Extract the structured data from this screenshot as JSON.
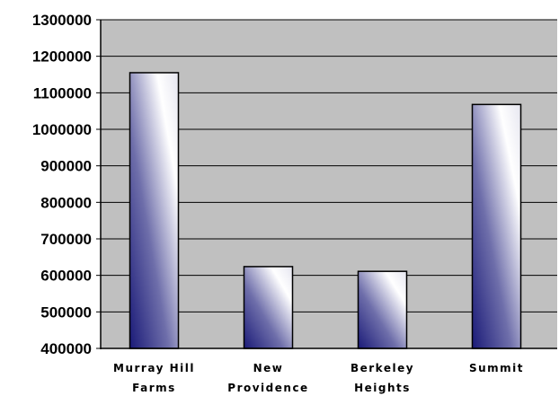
{
  "chart_data": {
    "type": "bar",
    "title": "",
    "xlabel": "",
    "ylabel": "",
    "categories": [
      [
        "Murray Hill",
        "Farms"
      ],
      [
        "New",
        "Providence"
      ],
      [
        "Berkeley",
        "Heights"
      ],
      [
        "Summit"
      ]
    ],
    "values": [
      1155000,
      624000,
      611000,
      1068000
    ],
    "ylim": [
      400000,
      1300000
    ],
    "yticks": [
      400000,
      500000,
      600000,
      700000,
      800000,
      900000,
      1000000,
      1100000,
      1200000,
      1300000
    ],
    "grid": true,
    "legend": "none",
    "colors": {
      "plot_background": "#c0c0c0",
      "bar_dark": "#1a1a78",
      "bar_light": "#ffffff",
      "gridline": "#000000"
    }
  }
}
